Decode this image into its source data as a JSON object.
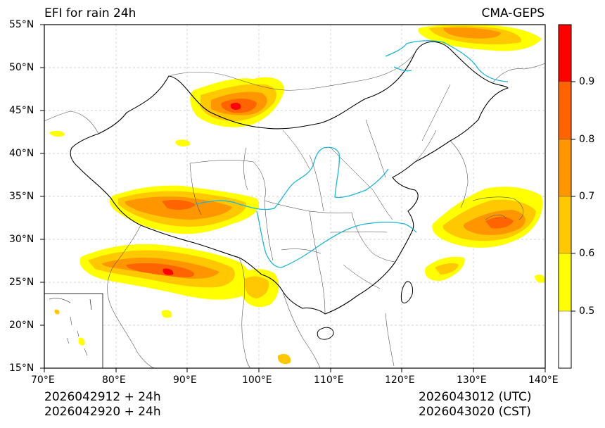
{
  "header": {
    "title_left": "EFI for rain 24h",
    "title_right": "CMA-GEPS"
  },
  "axes": {
    "lat_labels": [
      "55°N",
      "50°N",
      "45°N",
      "40°N",
      "35°N",
      "30°N",
      "25°N",
      "20°N",
      "15°N"
    ],
    "lon_labels": [
      "70°E",
      "80°E",
      "90°E",
      "100°E",
      "110°E",
      "120°E",
      "130°E",
      "140°E"
    ]
  },
  "colorbar": {
    "labels": [
      "0.9",
      "0.8",
      "0.7",
      "0.6",
      "0.5"
    ],
    "colors": [
      "#ffffff",
      "#ffff00",
      "#ffc800",
      "#ff9600",
      "#ff6400",
      "#ff0000"
    ]
  },
  "footer": {
    "init_utc": "2026042912 + 24h",
    "init_cst": "2026042920 + 24h",
    "valid_utc": "2026043012 (UTC)",
    "valid_cst": "2026043020 (CST)"
  }
}
